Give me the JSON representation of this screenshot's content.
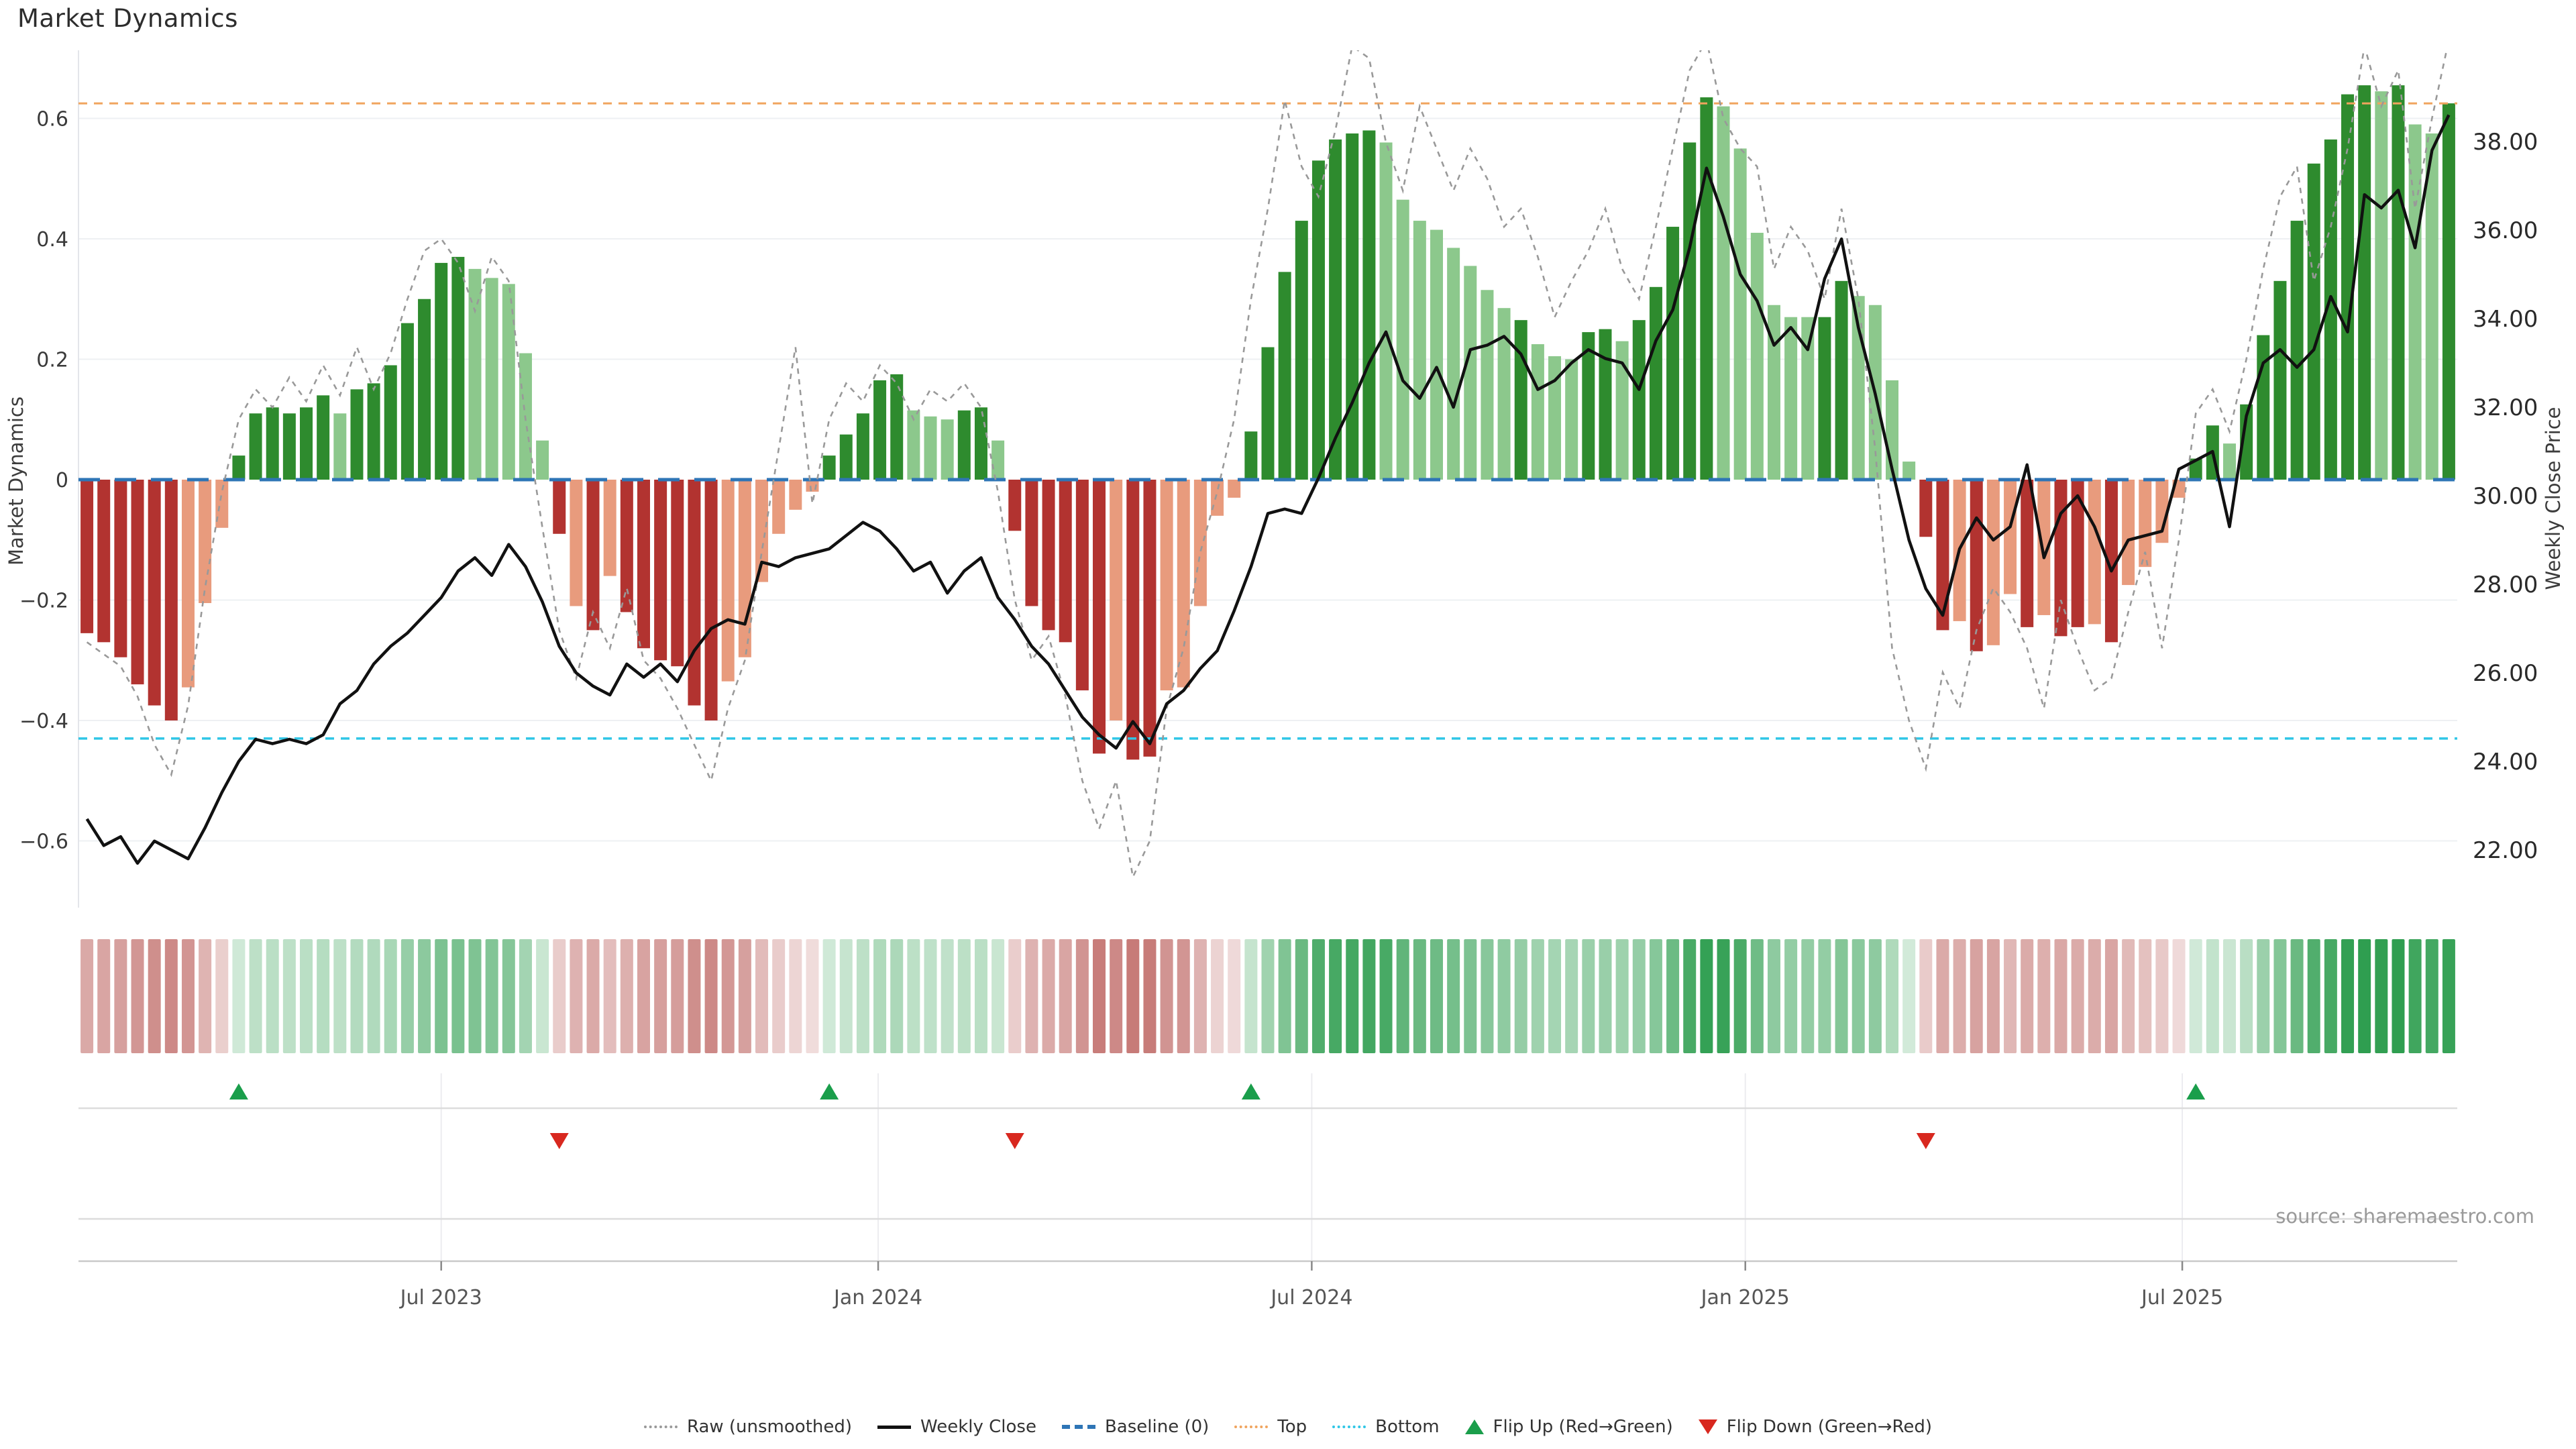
{
  "chart_data": {
    "type": "bar",
    "subtype": "weekly market-dynamics bars + dual-axis price line + heatmap strip + flip markers",
    "title": "Market Dynamics",
    "source": "source: sharemaestro.com",
    "left_axis": {
      "label": "Market Dynamics",
      "tick_labels": [
        "0.6",
        "0.4",
        "0.2",
        "0",
        "−0.2",
        "−0.4",
        "−0.6"
      ],
      "tick_values": [
        0.6,
        0.4,
        0.2,
        0,
        -0.2,
        -0.4,
        -0.6
      ],
      "range": [
        -0.715,
        0.713
      ]
    },
    "right_axis": {
      "label": "Weekly Close Price",
      "tick_labels": [
        "38.00",
        "36.00",
        "34.00",
        "32.00",
        "30.00",
        "28.00",
        "26.00",
        "24.00",
        "22.00"
      ],
      "tick_values": [
        38,
        36,
        34,
        32,
        30,
        28,
        26,
        24,
        22
      ],
      "range": [
        20.7,
        40.1
      ]
    },
    "x_axis": {
      "tick_labels": [
        "Jul 2023",
        "Jan 2024",
        "Jul 2024",
        "Jan 2025",
        "Jul 2025"
      ],
      "tick_week_positions": [
        21.0,
        46.9,
        72.6,
        98.3,
        124.2
      ],
      "n_weeks": 141
    },
    "reference_lines": {
      "baseline": 0,
      "top": 0.625,
      "bottom": -0.43
    },
    "bar_runs": [
      {
        "values": [
          -0.255,
          -0.27,
          -0.295,
          -0.34,
          -0.375,
          -0.4,
          -0.345,
          -0.205,
          -0.08
        ],
        "shades": [
          "dr",
          "dr",
          "dr",
          "dr",
          "dr",
          "dr",
          "lr",
          "lr",
          "lr"
        ]
      },
      {
        "values": [
          0.04,
          0.11,
          0.12,
          0.11,
          0.12,
          0.14,
          0.11,
          0.15,
          0.16,
          0.19,
          0.26,
          0.3,
          0.36,
          0.37,
          0.35,
          0.335,
          0.325,
          0.21,
          0.065
        ],
        "shades": [
          "dg",
          "dg",
          "dg",
          "dg",
          "dg",
          "dg",
          "lg",
          "dg",
          "dg",
          "dg",
          "dg",
          "dg",
          "dg",
          "dg",
          "lg",
          "lg",
          "lg",
          "lg",
          "lg"
        ]
      },
      {
        "values": [
          -0.09,
          -0.21,
          -0.25,
          -0.16,
          -0.22,
          -0.28,
          -0.3,
          -0.31,
          -0.375,
          -0.4,
          -0.335,
          -0.295,
          -0.17,
          -0.09,
          -0.05,
          -0.02
        ],
        "shades": [
          "dr",
          "lr",
          "dr",
          "lr",
          "dr",
          "dr",
          "dr",
          "dr",
          "dr",
          "dr",
          "lr",
          "lr",
          "lr",
          "lr",
          "lr",
          "lr"
        ]
      },
      {
        "values": [
          0.04,
          0.075,
          0.11,
          0.165,
          0.175,
          0.115,
          0.105,
          0.1,
          0.115,
          0.12,
          0.065
        ],
        "shades": [
          "dg",
          "dg",
          "dg",
          "dg",
          "dg",
          "lg",
          "lg",
          "lg",
          "dg",
          "dg",
          "lg"
        ]
      },
      {
        "values": [
          -0.085,
          -0.21,
          -0.25,
          -0.27,
          -0.35,
          -0.455,
          -0.4,
          -0.465,
          -0.46,
          -0.35,
          -0.345,
          -0.21,
          -0.06,
          -0.03
        ],
        "shades": [
          "dr",
          "dr",
          "dr",
          "dr",
          "dr",
          "dr",
          "lr",
          "dr",
          "dr",
          "lr",
          "lr",
          "lr",
          "lr",
          "lr"
        ]
      },
      {
        "values": [
          0.08,
          0.22,
          0.345,
          0.43,
          0.53,
          0.565,
          0.575,
          0.58,
          0.56,
          0.465,
          0.43,
          0.415,
          0.385,
          0.355,
          0.315,
          0.285,
          0.265,
          0.225,
          0.205,
          0.2,
          0.245,
          0.25,
          0.23,
          0.265,
          0.32,
          0.42,
          0.56,
          0.635,
          0.62,
          0.55,
          0.41,
          0.29,
          0.27,
          0.27,
          0.27,
          0.33,
          0.305,
          0.29,
          0.165,
          0.03
        ],
        "shades": [
          "dg",
          "dg",
          "dg",
          "dg",
          "dg",
          "dg",
          "dg",
          "dg",
          "lg",
          "lg",
          "lg",
          "lg",
          "lg",
          "lg",
          "lg",
          "lg",
          "dg",
          "lg",
          "lg",
          "lg",
          "dg",
          "dg",
          "lg",
          "dg",
          "dg",
          "dg",
          "dg",
          "dg",
          "lg",
          "lg",
          "lg",
          "lg",
          "lg",
          "lg",
          "dg",
          "dg",
          "lg",
          "lg",
          "lg",
          "lg"
        ]
      },
      {
        "values": [
          -0.095,
          -0.25,
          -0.235,
          -0.285,
          -0.275,
          -0.19,
          -0.245,
          -0.225,
          -0.26,
          -0.245,
          -0.24,
          -0.27,
          -0.175,
          -0.145,
          -0.105,
          -0.03
        ],
        "shades": [
          "dr",
          "dr",
          "lr",
          "dr",
          "lr",
          "lr",
          "dr",
          "lr",
          "dr",
          "dr",
          "lr",
          "dr",
          "lr",
          "lr",
          "lr",
          "lr"
        ]
      },
      {
        "values": [
          0.035,
          0.09,
          0.06,
          0.125,
          0.24,
          0.33,
          0.43,
          0.525,
          0.565,
          0.64,
          0.655,
          0.645,
          0.655,
          0.59,
          0.575,
          0.625
        ],
        "shades": [
          "dg",
          "dg",
          "lg",
          "dg",
          "dg",
          "dg",
          "dg",
          "dg",
          "dg",
          "dg",
          "dg",
          "lg",
          "dg",
          "lg",
          "lg",
          "dg"
        ]
      }
    ],
    "raw_unsmoothed": [
      -0.27,
      -0.29,
      -0.31,
      -0.36,
      -0.44,
      -0.49,
      -0.375,
      -0.18,
      -0.02,
      0.1,
      0.15,
      0.12,
      0.17,
      0.13,
      0.19,
      0.14,
      0.22,
      0.15,
      0.21,
      0.3,
      0.38,
      0.4,
      0.36,
      0.28,
      0.37,
      0.33,
      0.1,
      -0.08,
      -0.25,
      -0.33,
      -0.22,
      -0.28,
      -0.18,
      -0.3,
      -0.33,
      -0.38,
      -0.44,
      -0.5,
      -0.38,
      -0.3,
      -0.12,
      0.05,
      0.22,
      -0.04,
      0.1,
      0.16,
      0.13,
      0.19,
      0.16,
      0.1,
      0.15,
      0.13,
      0.16,
      0.12,
      -0.02,
      -0.2,
      -0.3,
      -0.26,
      -0.36,
      -0.5,
      -0.58,
      -0.5,
      -0.66,
      -0.6,
      -0.38,
      -0.28,
      -0.12,
      -0.02,
      0.1,
      0.3,
      0.45,
      0.63,
      0.52,
      0.47,
      0.58,
      0.72,
      0.7,
      0.56,
      0.48,
      0.62,
      0.55,
      0.48,
      0.55,
      0.5,
      0.42,
      0.45,
      0.37,
      0.27,
      0.33,
      0.38,
      0.45,
      0.35,
      0.3,
      0.42,
      0.55,
      0.68,
      0.73,
      0.6,
      0.55,
      0.52,
      0.35,
      0.42,
      0.38,
      0.3,
      0.45,
      0.3,
      0.05,
      -0.28,
      -0.4,
      -0.48,
      -0.32,
      -0.38,
      -0.25,
      -0.18,
      -0.22,
      -0.28,
      -0.38,
      -0.2,
      -0.28,
      -0.35,
      -0.33,
      -0.22,
      -0.12,
      -0.28,
      -0.1,
      0.11,
      0.15,
      0.08,
      0.2,
      0.35,
      0.47,
      0.52,
      0.33,
      0.42,
      0.55,
      0.72,
      0.62,
      0.68,
      0.45,
      0.6,
      0.73
    ],
    "weekly_close": [
      22.7,
      22.1,
      22.3,
      21.7,
      22.2,
      22.0,
      21.8,
      22.5,
      23.3,
      24.0,
      24.5,
      24.4,
      24.5,
      24.4,
      24.6,
      25.3,
      25.6,
      26.2,
      26.6,
      26.9,
      27.3,
      27.7,
      28.3,
      28.6,
      28.2,
      28.9,
      28.4,
      27.6,
      26.6,
      26.0,
      25.7,
      25.5,
      26.2,
      25.9,
      26.2,
      25.8,
      26.5,
      27.0,
      27.2,
      27.1,
      28.5,
      28.4,
      28.6,
      28.7,
      28.8,
      29.1,
      29.4,
      29.2,
      28.8,
      28.3,
      28.5,
      27.8,
      28.3,
      28.6,
      27.7,
      27.2,
      26.6,
      26.2,
      25.6,
      25.0,
      24.6,
      24.3,
      24.9,
      24.4,
      25.3,
      25.6,
      26.1,
      26.5,
      27.4,
      28.4,
      29.6,
      29.7,
      29.6,
      30.4,
      31.3,
      32.1,
      33.0,
      33.7,
      32.6,
      32.2,
      32.9,
      32.0,
      33.3,
      33.4,
      33.6,
      33.2,
      32.4,
      32.6,
      33.0,
      33.3,
      33.1,
      33.0,
      32.4,
      33.5,
      34.2,
      35.6,
      37.4,
      36.3,
      35.0,
      34.4,
      33.4,
      33.8,
      33.3,
      34.9,
      35.8,
      33.8,
      32.3,
      30.6,
      29.0,
      27.9,
      27.3,
      28.8,
      29.5,
      29.0,
      29.3,
      30.7,
      28.6,
      29.6,
      30.0,
      29.3,
      28.3,
      29.0,
      29.1,
      29.2,
      30.6,
      30.8,
      31.0,
      29.3,
      31.8,
      33.0,
      33.3,
      32.9,
      33.3,
      34.5,
      33.7,
      36.8,
      36.5,
      36.9,
      35.6,
      37.8,
      38.6
    ],
    "flip_up_weeks": [
      9,
      44,
      69,
      125
    ],
    "flip_down_weeks": [
      28,
      55,
      109
    ],
    "legend": {
      "items": [
        {
          "label": "Raw (unsmoothed)"
        },
        {
          "label": "Weekly Close"
        },
        {
          "label": "Baseline (0)"
        },
        {
          "label": "Top"
        },
        {
          "label": "Bottom"
        },
        {
          "label": "Flip Up (Red→Green)"
        },
        {
          "label": "Flip Down (Green→Red)"
        }
      ]
    },
    "colors": {
      "bar_dark_green": "#2e8b2e",
      "bar_light_green": "#8cc88c",
      "bar_dark_red": "#b23330",
      "bar_light_red": "#e89b7d",
      "raw_line": "#999999",
      "close_line": "#111111",
      "baseline": "#2e75b6",
      "top_line": "#f0a45e",
      "bottom_line": "#2fc6e6",
      "flip_up": "#1a9e4b",
      "flip_down": "#d8281f",
      "heat_green_base": "#2f9e50",
      "heat_red_base": "#b5524e",
      "grid": "#eef0f3",
      "subgrid": "#dcdcdc",
      "axis_line": "#c9c9c9",
      "tick_text": "#3a3a3a",
      "xtick_text": "#555555"
    }
  }
}
